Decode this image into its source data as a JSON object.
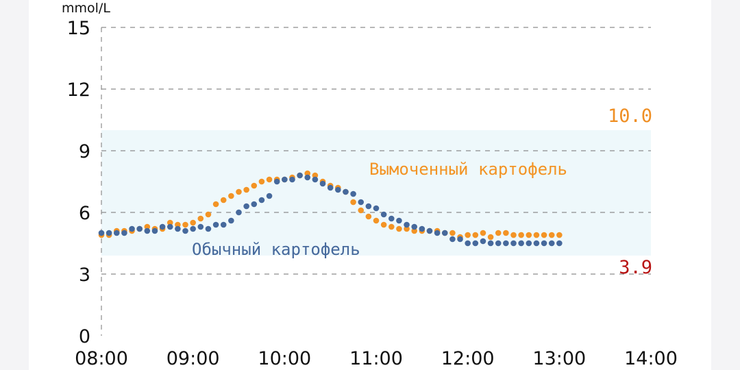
{
  "chart_data": {
    "type": "scatter",
    "ylabel": "mmol/L",
    "ylim": [
      0,
      15
    ],
    "xlim": [
      "08:00",
      "14:00"
    ],
    "y_ticks": [
      0,
      3,
      6,
      9,
      12,
      15
    ],
    "x_ticks": [
      "08:00",
      "09:00",
      "10:00",
      "11:00",
      "12:00",
      "13:00",
      "14:00"
    ],
    "grid": "horizontal dashed + left vertical dashed",
    "target_range": {
      "low": 3.9,
      "high": 10.0,
      "low_label": "3.9",
      "high_label": "10.0",
      "fill": "#eef8fb",
      "low_color": "#b81414",
      "high_color": "#ef8f24"
    },
    "series": [
      {
        "name": "Вымоченный картофель",
        "color": "#f39425",
        "x": [
          "08:00",
          "08:05",
          "08:10",
          "08:15",
          "08:20",
          "08:25",
          "08:30",
          "08:35",
          "08:40",
          "08:45",
          "08:50",
          "08:55",
          "09:00",
          "09:05",
          "09:10",
          "09:15",
          "09:20",
          "09:25",
          "09:30",
          "09:35",
          "09:40",
          "09:45",
          "09:50",
          "09:55",
          "10:00",
          "10:05",
          "10:10",
          "10:15",
          "10:20",
          "10:25",
          "10:30",
          "10:35",
          "10:40",
          "10:45",
          "10:50",
          "10:55",
          "11:00",
          "11:05",
          "11:10",
          "11:15",
          "11:20",
          "11:25",
          "11:30",
          "11:35",
          "11:40",
          "11:45",
          "11:50",
          "11:55",
          "12:00",
          "12:05",
          "12:10",
          "12:15",
          "12:20",
          "12:25",
          "12:30",
          "12:35",
          "12:40",
          "12:45",
          "12:50",
          "12:55",
          "13:00"
        ],
        "y": [
          4.9,
          4.9,
          5.1,
          5.1,
          5.1,
          5.2,
          5.3,
          5.2,
          5.2,
          5.5,
          5.4,
          5.4,
          5.5,
          5.7,
          5.9,
          6.4,
          6.6,
          6.8,
          7.0,
          7.1,
          7.3,
          7.5,
          7.6,
          7.6,
          7.6,
          7.7,
          7.8,
          7.9,
          7.8,
          7.5,
          7.3,
          7.2,
          7.0,
          6.5,
          6.1,
          5.8,
          5.6,
          5.4,
          5.3,
          5.2,
          5.2,
          5.1,
          5.1,
          5.1,
          5.1,
          5.0,
          5.0,
          4.8,
          4.9,
          4.9,
          5.0,
          4.8,
          5.0,
          5.0,
          4.9,
          4.9,
          4.9,
          4.9,
          4.9,
          4.9,
          4.9
        ]
      },
      {
        "name": "Обычный картофель",
        "color": "#46699c",
        "x": [
          "08:00",
          "08:05",
          "08:10",
          "08:15",
          "08:20",
          "08:25",
          "08:30",
          "08:35",
          "08:40",
          "08:45",
          "08:50",
          "08:55",
          "09:00",
          "09:05",
          "09:10",
          "09:15",
          "09:20",
          "09:25",
          "09:30",
          "09:35",
          "09:40",
          "09:45",
          "09:50",
          "09:55",
          "10:00",
          "10:05",
          "10:10",
          "10:15",
          "10:20",
          "10:25",
          "10:30",
          "10:35",
          "10:40",
          "10:45",
          "10:50",
          "10:55",
          "11:00",
          "11:05",
          "11:10",
          "11:15",
          "11:20",
          "11:25",
          "11:30",
          "11:35",
          "11:40",
          "11:45",
          "11:50",
          "11:55",
          "12:00",
          "12:05",
          "12:10",
          "12:15",
          "12:20",
          "12:25",
          "12:30",
          "12:35",
          "12:40",
          "12:45",
          "12:50",
          "12:55",
          "13:00"
        ],
        "y": [
          5.0,
          5.0,
          5.0,
          5.0,
          5.2,
          5.2,
          5.1,
          5.1,
          5.3,
          5.3,
          5.2,
          5.1,
          5.2,
          5.3,
          5.2,
          5.4,
          5.4,
          5.6,
          6.0,
          6.3,
          6.4,
          6.6,
          6.8,
          7.5,
          7.6,
          7.6,
          7.8,
          7.7,
          7.6,
          7.4,
          7.2,
          7.1,
          7.0,
          6.9,
          6.5,
          6.3,
          6.2,
          5.9,
          5.7,
          5.6,
          5.4,
          5.3,
          5.2,
          5.1,
          5.0,
          5.0,
          4.7,
          4.7,
          4.5,
          4.5,
          4.6,
          4.5,
          4.5,
          4.5,
          4.5,
          4.5,
          4.5,
          4.5,
          4.5,
          4.5,
          4.5
        ]
      }
    ]
  }
}
